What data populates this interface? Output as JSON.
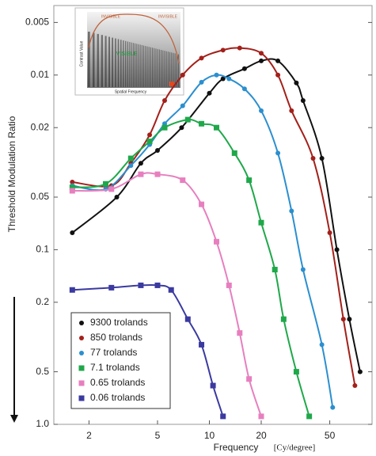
{
  "chart_data": {
    "type": "line",
    "xlabel": "Frequency",
    "xunit": "[Cy/degree]",
    "ylabel": "Threshold Modulation Ratio",
    "xscale": "log",
    "yscale": "log",
    "xlim": [
      1.25,
      88
    ],
    "ylim": [
      1,
      0.004
    ],
    "xticks": [
      2,
      5,
      10,
      20,
      50
    ],
    "yticks": [
      0.005,
      0.01,
      0.02,
      0.05,
      0.1,
      0.2,
      0.5,
      {
        "value": 1,
        "label": "1.0"
      }
    ],
    "grid": false,
    "legend": "lower left",
    "annotations": [
      "INVISIBLE",
      "INVISIBLE",
      "VISIBLE",
      "Contrast Value",
      "Spatial Frequency"
    ],
    "series": [
      {
        "name": "9300 trolands",
        "color": "#111111",
        "marker": "circle",
        "x": [
          1.6,
          2.9,
          4,
          5,
          6.9,
          10,
          12,
          16,
          20,
          25,
          32,
          35,
          45,
          55,
          65,
          75
        ],
        "values": [
          0.08,
          0.05,
          0.032,
          0.027,
          0.02,
          0.0127,
          0.0105,
          0.0092,
          0.0083,
          0.0083,
          0.0111,
          0.014,
          0.03,
          0.1,
          0.25,
          0.5
        ]
      },
      {
        "name": "850 trolands",
        "color": "#a3201a",
        "marker": "circle",
        "x": [
          1.6,
          2.7,
          3.5,
          4.5,
          5.5,
          7,
          9,
          12,
          15,
          20,
          25,
          30,
          40,
          50,
          60,
          70
        ],
        "values": [
          0.041,
          0.043,
          0.032,
          0.022,
          0.014,
          0.01,
          0.008,
          0.0072,
          0.007,
          0.0075,
          0.01,
          0.016,
          0.03,
          0.08,
          0.25,
          0.6
        ]
      },
      {
        "name": "77 trolands",
        "color": "#2b8fcf",
        "marker": "circle",
        "x": [
          1.6,
          2.5,
          3.5,
          4.5,
          5.5,
          7,
          9,
          11,
          13,
          16,
          20,
          25,
          30,
          35,
          45,
          52
        ],
        "values": [
          0.043,
          0.045,
          0.033,
          0.025,
          0.019,
          0.015,
          0.011,
          0.01,
          0.0105,
          0.012,
          0.016,
          0.028,
          0.06,
          0.13,
          0.35,
          0.8
        ]
      },
      {
        "name": "7.1 trolands",
        "color": "#1fa84a",
        "marker": "square",
        "x": [
          1.6,
          2.5,
          3.5,
          4.5,
          5.5,
          7.5,
          9,
          11,
          14,
          17,
          20,
          24,
          27,
          32,
          38
        ],
        "values": [
          0.044,
          0.042,
          0.03,
          0.024,
          0.02,
          0.018,
          0.019,
          0.02,
          0.028,
          0.04,
          0.07,
          0.13,
          0.25,
          0.5,
          0.9
        ]
      },
      {
        "name": "0.65 trolands",
        "color": "#e77fbf",
        "marker": "square",
        "x": [
          1.6,
          2.7,
          4,
          5,
          7,
          9,
          11,
          13,
          15,
          17,
          20
        ],
        "values": [
          0.046,
          0.045,
          0.037,
          0.037,
          0.04,
          0.055,
          0.09,
          0.16,
          0.3,
          0.55,
          0.9
        ]
      },
      {
        "name": "0.06 trolands",
        "color": "#3b3aa0",
        "marker": "square",
        "x": [
          1.6,
          2.7,
          4,
          5,
          6,
          7.5,
          9,
          10.5,
          12
        ],
        "values": [
          0.17,
          0.165,
          0.16,
          0.16,
          0.17,
          0.25,
          0.35,
          0.6,
          0.9
        ]
      }
    ]
  }
}
